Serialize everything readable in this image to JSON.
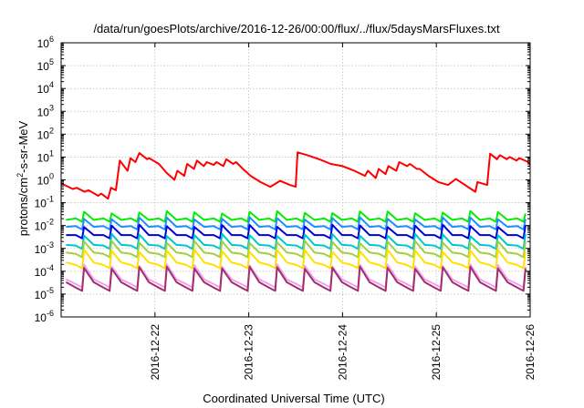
{
  "chart_data": {
    "type": "line",
    "title": "/data/run/goesPlots/archive/2016-12-26/00:00/flux/../flux/5daysMarsFluxes.txt",
    "xlabel": "Coordinated Universal Time (UTC)",
    "ylabel": {
      "prefix": "protons/cm",
      "sup": "2",
      "suffix": "-s-sr-MeV"
    },
    "yscale": "log",
    "ylim": [
      1e-06,
      1000000.0
    ],
    "y_tick_labels": [
      {
        "base": "10",
        "exp": "-6"
      },
      {
        "base": "10",
        "exp": "-5"
      },
      {
        "base": "10",
        "exp": "-4"
      },
      {
        "base": "10",
        "exp": "-3"
      },
      {
        "base": "10",
        "exp": "-2"
      },
      {
        "base": "10",
        "exp": "-1"
      },
      {
        "base": "10",
        "exp": "0"
      },
      {
        "base": "10",
        "exp": "1"
      },
      {
        "base": "10",
        "exp": "2"
      },
      {
        "base": "10",
        "exp": "3"
      },
      {
        "base": "10",
        "exp": "4"
      },
      {
        "base": "10",
        "exp": "5"
      },
      {
        "base": "10",
        "exp": "6"
      }
    ],
    "xlim": [
      "2016-12-21T00:00",
      "2016-12-26T00:00"
    ],
    "x_ticks": [
      "2016-12-22",
      "2016-12-23",
      "2016-12-24",
      "2016-12-25",
      "2016-12-26"
    ],
    "grid": true,
    "series": [
      {
        "color": "#ff0000",
        "x": [
          "2016-12-21T00:00",
          "2016-12-21T03:00",
          "2016-12-21T04:00",
          "2016-12-21T06:00",
          "2016-12-21T07:00",
          "2016-12-21T09:30",
          "2016-12-21T10:15",
          "2016-12-21T12:00",
          "2016-12-21T12:45",
          "2016-12-21T14:00",
          "2016-12-21T15:00",
          "2016-12-21T17:00",
          "2016-12-21T17:45",
          "2016-12-21T19:00",
          "2016-12-21T20:00",
          "2016-12-21T22:00",
          "2016-12-21T22:30",
          "2016-12-22T01:00",
          "2016-12-22T03:00",
          "2016-12-22T05:00",
          "2016-12-22T05:45",
          "2016-12-22T07:30",
          "2016-12-22T08:15",
          "2016-12-22T10:00",
          "2016-12-22T10:45",
          "2016-12-22T12:30",
          "2016-12-22T13:15",
          "2016-12-22T15:00",
          "2016-12-22T15:45",
          "2016-12-22T17:30",
          "2016-12-22T18:15",
          "2016-12-22T20:00",
          "2016-12-22T20:45",
          "2016-12-22T22:30",
          "2016-12-23T00:30",
          "2016-12-23T03:00",
          "2016-12-23T05:30",
          "2016-12-23T08:00",
          "2016-12-23T10:30",
          "2016-12-23T12:00",
          "2016-12-23T12:30",
          "2016-12-23T15:00",
          "2016-12-23T18:00",
          "2016-12-23T21:00",
          "2016-12-24T00:00",
          "2016-12-24T03:00",
          "2016-12-24T05:45",
          "2016-12-24T06:30",
          "2016-12-24T08:30",
          "2016-12-24T09:15",
          "2016-12-24T11:00",
          "2016-12-24T11:45",
          "2016-12-24T13:45",
          "2016-12-24T14:30",
          "2016-12-24T16:30",
          "2016-12-24T17:15",
          "2016-12-24T19:00",
          "2016-12-24T19:45",
          "2016-12-24T22:00",
          "2016-12-25T00:30",
          "2016-12-25T03:00",
          "2016-12-25T05:00",
          "2016-12-25T06:45",
          "2016-12-25T08:00",
          "2016-12-25T10:00",
          "2016-12-25T10:30",
          "2016-12-25T13:00",
          "2016-12-25T13:45",
          "2016-12-25T15:30",
          "2016-12-25T16:15",
          "2016-12-25T18:00",
          "2016-12-25T18:45",
          "2016-12-25T20:30",
          "2016-12-25T21:15",
          "2016-12-25T23:30",
          "2016-12-26T00:00"
        ],
        "y": [
          0.7,
          0.4,
          0.45,
          0.3,
          0.35,
          0.2,
          0.25,
          0.15,
          0.45,
          0.35,
          7,
          2.5,
          9,
          6,
          15,
          8,
          9,
          5,
          2,
          1,
          2.5,
          1.5,
          5,
          3,
          7,
          4,
          6,
          4.5,
          6,
          4,
          8,
          5,
          6,
          3,
          1.5,
          0.8,
          0.5,
          0.9,
          0.6,
          0.5,
          16,
          12,
          8,
          5,
          4,
          2.5,
          1.5,
          2.5,
          1.2,
          3,
          1.8,
          4,
          2.5,
          6,
          4,
          5,
          3,
          3,
          1.5,
          0.8,
          0.6,
          1.1,
          0.7,
          0.5,
          0.3,
          0.8,
          0.6,
          14,
          8,
          12,
          8,
          10,
          7,
          9,
          6,
          4.5
        ]
      },
      {
        "color": "#00ee00",
        "base": 0.016,
        "amplitude": 2.4
      },
      {
        "color": "#1f8fff",
        "base": 0.008,
        "amplitude": 2.6
      },
      {
        "color": "#0000dd",
        "base": 0.0035,
        "amplitude": 2.8
      },
      {
        "color": "#00c8c8",
        "base": 0.0013,
        "amplitude": 3.0
      },
      {
        "color": "#a0d040",
        "base": 0.0006,
        "amplitude": 3.2
      },
      {
        "color": "#ffe000",
        "base": 0.00022,
        "amplitude": 3.6
      },
      {
        "color": "#f0a0f0",
        "base": 4e-05,
        "amplitude": 4.5
      },
      {
        "color": "#a0306a",
        "base": 3e-05,
        "amplitude": 4.8
      }
    ]
  }
}
